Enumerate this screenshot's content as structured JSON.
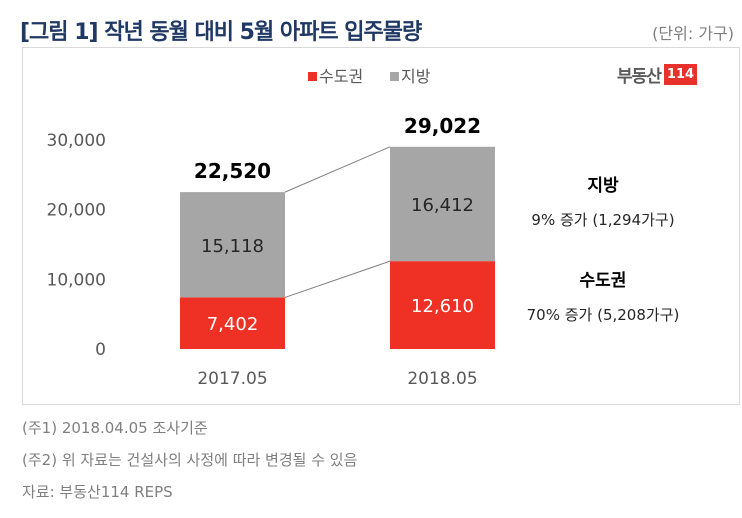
{
  "title": "[그림 1] 작년 동월 대비 5월 아파트 입주물량",
  "unit": "(단위: 가구)",
  "logo": {
    "text": "부동산",
    "num": "114"
  },
  "notes": [
    "(주1) 2018.04.05 조사기준",
    "(주2) 위 자료는 건설사의 사정에 따라 변경될 수 있음",
    "자료: 부동산114 REPS"
  ],
  "colors": {
    "capital": "#ee3124",
    "regional": "#a6a6a6"
  },
  "chart_data": {
    "type": "bar",
    "stacked": true,
    "categories": [
      "2017.05",
      "2018.05"
    ],
    "series": [
      {
        "name": "수도권",
        "values": [
          7402,
          12610
        ],
        "labels": [
          "7,402",
          "12,610"
        ]
      },
      {
        "name": "지방",
        "values": [
          15118,
          16412
        ],
        "labels": [
          "15,118",
          "16,412"
        ]
      }
    ],
    "totals": [
      22520,
      29022
    ],
    "total_labels": [
      "22,520",
      "29,022"
    ],
    "ylim": [
      0,
      30000
    ],
    "yticks": [
      0,
      10000,
      20000,
      30000
    ],
    "ytick_labels": [
      "0",
      "10,000",
      "20,000",
      "30,000"
    ],
    "legend": "top-center",
    "annotations": [
      {
        "title": "지방",
        "text": "9% 증가 (1,294가구)"
      },
      {
        "title": "수도권",
        "text": "70% 증가 (5,208가구)"
      }
    ]
  }
}
